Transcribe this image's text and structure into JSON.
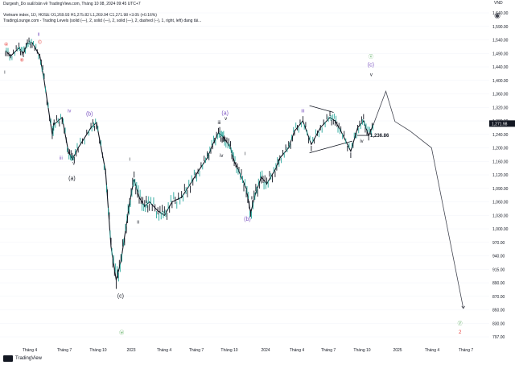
{
  "header": {
    "published": "Durgesh_Do suất bản về TradingView.com, Tháng 10 08, 2024 09:45 UTC+7",
    "symbol_line": "Vietnam index, 1D, HOSE  O1,269.93  H1,275.82  L1,269.94  C1,271.98  +3.05 (+0.16%)",
    "study_line": "TradingLounge.com - Trading Levels (solid (—), 2, solid (—), 2, solid (—), 2, dashed (--), 1, right, left) đang tải...",
    "camera_icon": "camera-icon"
  },
  "footer": {
    "brand": "TradingView",
    "logo_icon": "tradingview-logo-icon"
  },
  "chart_data": {
    "type": "line",
    "series": [
      {
        "x": [
          "2022-01-04",
          "2022-01-18",
          "2022-02-10",
          "2022-02-22",
          "2022-03-05",
          "2022-03-18",
          "2022-04-08",
          "2022-04-20",
          "2022-05-12",
          "2022-05-17",
          "2022-06-08",
          "2022-06-25",
          "2022-07-06",
          "2022-07-22",
          "2022-08-26",
          "2022-09-10",
          "2022-10-05",
          "2022-10-20",
          "2022-11-03",
          "2022-11-16",
          "2022-12-01",
          "2022-12-10",
          "2022-12-22",
          "2023-01-05",
          "2023-01-20",
          "2023-02-02",
          "2023-02-25",
          "2023-03-15",
          "2023-04-05",
          "2023-05-01",
          "2023-05-25",
          "2023-06-15",
          "2023-07-10",
          "2023-07-25",
          "2023-08-10",
          "2023-08-20",
          "2023-08-28",
          "2023-09-12",
          "2023-09-22",
          "2023-10-05",
          "2023-10-25",
          "2023-11-06",
          "2023-11-20",
          "2023-12-05",
          "2023-12-20",
          "2024-01-12",
          "2024-01-25",
          "2024-02-18",
          "2024-03-05",
          "2024-03-28",
          "2024-04-20",
          "2024-05-15",
          "2024-06-10",
          "2024-06-24",
          "2024-07-10",
          "2024-08-06",
          "2024-08-25",
          "2024-09-10",
          "2024-09-24",
          "2024-10-08"
        ],
        "values": [
          1500,
          1480,
          1510,
          1490,
          1528,
          1530,
          1480,
          1400,
          1240,
          1270,
          1290,
          1190,
          1165,
          1200,
          1260,
          1275,
          1130,
          960,
          895,
          930,
          1010,
          1060,
          1110,
          1070,
          1050,
          1060,
          1040,
          1030,
          1060,
          1070,
          1100,
          1130,
          1170,
          1210,
          1245,
          1235,
          1225,
          1200,
          1160,
          1130,
          1090,
          1035,
          1080,
          1115,
          1100,
          1135,
          1170,
          1200,
          1250,
          1280,
          1210,
          1260,
          1290,
          1280,
          1250,
          1190,
          1260,
          1280,
          1236,
          1271.98
        ]
      }
    ],
    "last_price": "1,271.98",
    "level_label": "1,236.86",
    "projection": {
      "x": [
        "2024-10-08",
        "2024-11-10",
        "2024-12-05",
        "2025-01-15",
        "2025-03-15",
        "2025-06-10"
      ],
      "values": [
        1272,
        1368,
        1278,
        1250,
        1200,
        852
      ]
    },
    "wedge_lines": [
      {
        "x": [
          "2024-04-15",
          "2024-06-20"
        ],
        "values": [
          1325,
          1305
        ]
      },
      {
        "x": [
          "2024-04-15",
          "2024-08-10"
        ],
        "values": [
          1185,
          1220
        ]
      }
    ],
    "y_ticks": [
      "1,640.00",
      "1,590.00",
      "1,540.00",
      "1,490.00",
      "1,440.00",
      "1,400.00",
      "1,360.00",
      "1,320.00",
      "1,280.00",
      "1,240.00",
      "1,200.00",
      "1,160.00",
      "1,120.00",
      "1,090.00",
      "1,060.00",
      "1,030.00",
      "1,000.00",
      "970.00",
      "940.00",
      "915.00",
      "890.00",
      "870.00",
      "850.00",
      "830.00",
      "797.00"
    ],
    "y_unit": "VND",
    "x_ticks": [
      "Tháng 4",
      "Tháng 7",
      "Tháng 10",
      "2023",
      "Tháng 4",
      "Tháng 7",
      "Tháng 10",
      "2024",
      "Tháng 4",
      "Tháng 7",
      "Tháng 10",
      "2025",
      "Tháng 4",
      "Tháng 7"
    ],
    "wave_labels": [
      {
        "text": "ii",
        "x": "2022-04-05",
        "y": 1555,
        "color": "#7e57c2"
      },
      {
        "text": "④",
        "x": "2022-01-06",
        "y": 1518,
        "color": "#e53935"
      },
      {
        "text": "©",
        "x": "2022-04-08",
        "y": 1525,
        "color": "#e53935"
      },
      {
        "text": "⑧",
        "x": "2022-02-18",
        "y": 1460,
        "color": "#e53935"
      },
      {
        "text": "i",
        "x": "2022-01-02",
        "y": 1420,
        "color": "#131722"
      },
      {
        "text": "iv",
        "x": "2022-06-28",
        "y": 1305,
        "color": "#7e57c2"
      },
      {
        "text": "(b)",
        "x": "2022-08-22",
        "y": 1295,
        "color": "#7e57c2"
      },
      {
        "text": "iii",
        "x": "2022-06-05",
        "y": 1165,
        "color": "#7e57c2"
      },
      {
        "text": "v",
        "x": "2022-07-10",
        "y": 1150,
        "color": "#131722"
      },
      {
        "text": "(a)",
        "x": "2022-07-05",
        "y": 1108,
        "color": "#131722"
      },
      {
        "text": "i",
        "x": "2022-12-10",
        "y": 1162,
        "color": "#131722"
      },
      {
        "text": "ii",
        "x": "2023-01-02",
        "y": 1012,
        "color": "#131722"
      },
      {
        "text": "(c)",
        "x": "2022-11-15",
        "y": 868,
        "color": "#131722"
      },
      {
        "text": "ⓦ",
        "x": "2022-11-18",
        "y": 803,
        "color": "#43a047"
      },
      {
        "text": "iii",
        "x": "2023-08-12",
        "y": 1270,
        "color": "#131722"
      },
      {
        "text": "(a)",
        "x": "2023-08-28",
        "y": 1298,
        "color": "#7e57c2"
      },
      {
        "text": "v",
        "x": "2023-08-30",
        "y": 1282,
        "color": "#131722"
      },
      {
        "text": "iv",
        "x": "2023-08-18",
        "y": 1172,
        "color": "#131722"
      },
      {
        "text": "i",
        "x": "2023-10-22",
        "y": 1178,
        "color": "#131722"
      },
      {
        "text": "ii",
        "x": "2023-11-10",
        "y": 1065,
        "color": "#131722"
      },
      {
        "text": "(b)",
        "x": "2023-10-28",
        "y": 1018,
        "color": "#7e57c2"
      },
      {
        "text": "iii",
        "x": "2024-03-28",
        "y": 1305,
        "color": "#7e57c2"
      },
      {
        "text": "iv",
        "x": "2024-09-05",
        "y": 1215,
        "color": "#131722"
      },
      {
        "text": "ⓧ",
        "x": "2024-09-30",
        "y": 1472,
        "color": "#43a047"
      },
      {
        "text": "(c)",
        "x": "2024-09-30",
        "y": 1442,
        "color": "#7e57c2"
      },
      {
        "text": "v",
        "x": "2024-10-01",
        "y": 1412,
        "color": "#131722"
      },
      {
        "text": "ⓨ",
        "x": "2025-06-01",
        "y": 826,
        "color": "#43a047"
      },
      {
        "text": "2",
        "x": "2025-06-01",
        "y": 805,
        "color": "#e53935"
      }
    ],
    "colors": {
      "up": "#26a69a",
      "down": "#131722",
      "price_tag": "#131722",
      "grid": "#f0f3fa",
      "text": "#131722"
    }
  }
}
